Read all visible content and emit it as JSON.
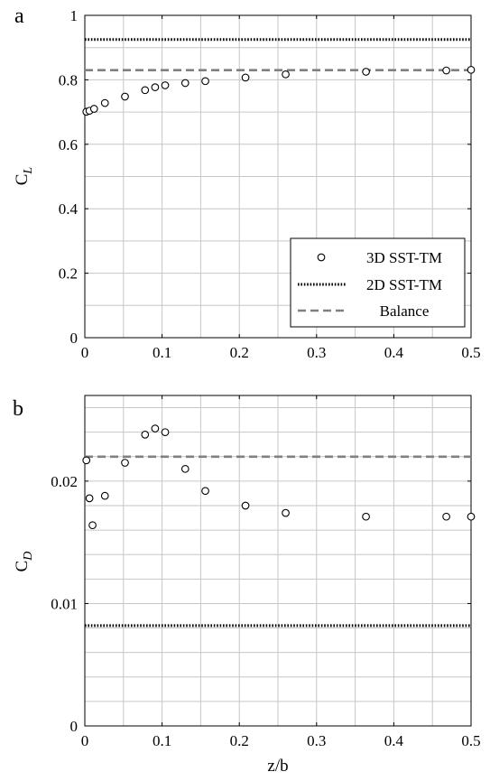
{
  "chart_data": [
    {
      "type": "scatter",
      "panel_label": "a",
      "xlabel": "",
      "ylabel": "C",
      "ylabel_sub": "L",
      "xlim": [
        0,
        0.5
      ],
      "ylim": [
        0,
        1
      ],
      "xticks": [
        0,
        0.1,
        0.2,
        0.3,
        0.4,
        0.5
      ],
      "xtick_labels": [
        "0",
        "0.1",
        "0.2",
        "0.3",
        "0.4",
        "0.5"
      ],
      "yticks": [
        0,
        0.2,
        0.4,
        0.6,
        0.8,
        1
      ],
      "ytick_labels": [
        "0",
        "0.2",
        "0.4",
        "0.6",
        "0.8",
        "1"
      ],
      "grid": true,
      "legend_position": "bottom-right",
      "series": [
        {
          "name": "3D SST-TM",
          "style": "open-circle",
          "x": [
            0.002,
            0.006,
            0.012,
            0.026,
            0.052,
            0.078,
            0.091,
            0.104,
            0.13,
            0.156,
            0.208,
            0.26,
            0.364,
            0.468,
            0.5
          ],
          "y": [
            0.701,
            0.704,
            0.71,
            0.728,
            0.748,
            0.768,
            0.777,
            0.783,
            0.79,
            0.796,
            0.807,
            0.817,
            0.825,
            0.829,
            0.831
          ]
        },
        {
          "name": "2D SST-TM",
          "style": "dotted",
          "color": "#000000",
          "y": 0.925
        },
        {
          "name": "Balance",
          "style": "dashed",
          "color": "#808080",
          "y": 0.83
        }
      ]
    },
    {
      "type": "scatter",
      "panel_label": "b",
      "xlabel": "z/b",
      "ylabel": "C",
      "ylabel_sub": "D",
      "xlim": [
        0,
        0.5
      ],
      "ylim": [
        0,
        0.027
      ],
      "xticks": [
        0,
        0.1,
        0.2,
        0.3,
        0.4,
        0.5
      ],
      "xtick_labels": [
        "0",
        "0.1",
        "0.2",
        "0.3",
        "0.4",
        "0.5"
      ],
      "yticks": [
        0,
        0.01,
        0.02
      ],
      "ytick_labels": [
        "0",
        "0.01",
        "0.02"
      ],
      "minor_y_grid_step": 0.002,
      "grid": true,
      "series": [
        {
          "name": "3D SST-TM",
          "style": "open-circle",
          "x": [
            0.002,
            0.006,
            0.01,
            0.026,
            0.052,
            0.078,
            0.091,
            0.104,
            0.13,
            0.156,
            0.208,
            0.26,
            0.364,
            0.468,
            0.5
          ],
          "y": [
            0.0217,
            0.0186,
            0.0164,
            0.0188,
            0.0215,
            0.0238,
            0.0243,
            0.024,
            0.021,
            0.0192,
            0.018,
            0.0174,
            0.0171,
            0.0171,
            0.0171
          ]
        },
        {
          "name": "2D SST-TM",
          "style": "dotted",
          "color": "#000000",
          "y": 0.0082
        },
        {
          "name": "Balance",
          "style": "dashed",
          "color": "#808080",
          "y": 0.022
        }
      ]
    }
  ]
}
